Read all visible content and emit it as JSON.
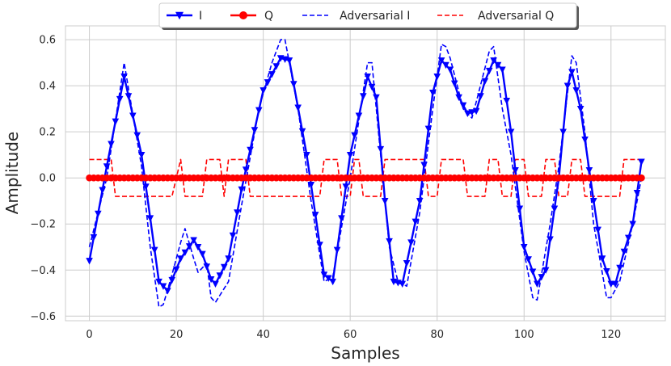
{
  "chart_data": {
    "type": "line",
    "title": "",
    "xlabel": "Samples",
    "ylabel": "Amplitude",
    "xlim": [
      -5.5,
      132.5
    ],
    "ylim": [
      -0.62,
      0.66
    ],
    "x_ticks": [
      0,
      20,
      40,
      60,
      80,
      100,
      120
    ],
    "y_ticks": [
      -0.6,
      -0.4,
      -0.2,
      0.0,
      0.2,
      0.4,
      0.6
    ],
    "x_tick_labels": [
      "0",
      "20",
      "40",
      "60",
      "80",
      "100",
      "120"
    ],
    "y_tick_labels": [
      "−0.6",
      "−0.4",
      "−0.2",
      "0.0",
      "0.2",
      "0.4",
      "0.6"
    ],
    "grid": true,
    "legend_placement": "top-center",
    "sample_count": 128,
    "series": [
      {
        "name": "I",
        "color": "#0000ff",
        "style": "solid",
        "marker": "triangle-down",
        "keypoints": [
          [
            0,
            -0.36
          ],
          [
            4,
            0.05
          ],
          [
            8,
            0.44
          ],
          [
            12,
            0.1
          ],
          [
            16,
            -0.45
          ],
          [
            18,
            -0.49
          ],
          [
            21,
            -0.35
          ],
          [
            24,
            -0.27
          ],
          [
            26,
            -0.33
          ],
          [
            28,
            -0.44
          ],
          [
            29,
            -0.46
          ],
          [
            32,
            -0.35
          ],
          [
            35,
            -0.05
          ],
          [
            40,
            0.38
          ],
          [
            44,
            0.52
          ],
          [
            46,
            0.51
          ],
          [
            50,
            0.1
          ],
          [
            54,
            -0.42
          ],
          [
            56,
            -0.45
          ],
          [
            60,
            0.1
          ],
          [
            64,
            0.44
          ],
          [
            66,
            0.35
          ],
          [
            68,
            -0.1
          ],
          [
            70,
            -0.45
          ],
          [
            72,
            -0.46
          ],
          [
            76,
            -0.1
          ],
          [
            79,
            0.37
          ],
          [
            81,
            0.51
          ],
          [
            83,
            0.47
          ],
          [
            85,
            0.35
          ],
          [
            87,
            0.28
          ],
          [
            89,
            0.29
          ],
          [
            91,
            0.42
          ],
          [
            93,
            0.51
          ],
          [
            95,
            0.47
          ],
          [
            97,
            0.2
          ],
          [
            100,
            -0.3
          ],
          [
            103,
            -0.46
          ],
          [
            105,
            -0.4
          ],
          [
            108,
            0.0
          ],
          [
            110,
            0.4
          ],
          [
            111,
            0.46
          ],
          [
            113,
            0.3
          ],
          [
            116,
            -0.1
          ],
          [
            118,
            -0.35
          ],
          [
            120,
            -0.46
          ],
          [
            121,
            -0.46
          ],
          [
            123,
            -0.32
          ],
          [
            125,
            -0.2
          ],
          [
            127,
            0.07
          ]
        ]
      },
      {
        "name": "Q",
        "color": "#ff0000",
        "style": "solid",
        "marker": "circle",
        "values": [
          0.0
        ]
      },
      {
        "name": "Adversarial I",
        "color": "#0000ff",
        "style": "dashed",
        "keypoints": [
          [
            0,
            -0.3
          ],
          [
            4,
            0.0
          ],
          [
            8,
            0.5
          ],
          [
            12,
            0.05
          ],
          [
            14,
            -0.3
          ],
          [
            16,
            -0.56
          ],
          [
            17,
            -0.55
          ],
          [
            19,
            -0.42
          ],
          [
            21,
            -0.28
          ],
          [
            22,
            -0.22
          ],
          [
            24,
            -0.35
          ],
          [
            25,
            -0.41
          ],
          [
            27,
            -0.37
          ],
          [
            28,
            -0.52
          ],
          [
            29,
            -0.54
          ],
          [
            32,
            -0.45
          ],
          [
            35,
            -0.12
          ],
          [
            39,
            0.3
          ],
          [
            42,
            0.5
          ],
          [
            44,
            0.6
          ],
          [
            45,
            0.6
          ],
          [
            48,
            0.3
          ],
          [
            51,
            -0.1
          ],
          [
            54,
            -0.45
          ],
          [
            56,
            -0.43
          ],
          [
            60,
            0.0
          ],
          [
            64,
            0.5
          ],
          [
            65,
            0.5
          ],
          [
            67,
            0.1
          ],
          [
            69,
            -0.3
          ],
          [
            71,
            -0.45
          ],
          [
            73,
            -0.47
          ],
          [
            76,
            -0.15
          ],
          [
            79,
            0.3
          ],
          [
            81,
            0.58
          ],
          [
            82,
            0.57
          ],
          [
            83,
            0.52
          ],
          [
            86,
            0.3
          ],
          [
            88,
            0.26
          ],
          [
            89,
            0.33
          ],
          [
            92,
            0.55
          ],
          [
            93,
            0.57
          ],
          [
            95,
            0.3
          ],
          [
            97,
            0.1
          ],
          [
            100,
            -0.32
          ],
          [
            102,
            -0.52
          ],
          [
            103,
            -0.53
          ],
          [
            106,
            -0.2
          ],
          [
            108,
            0.05
          ],
          [
            111,
            0.53
          ],
          [
            112,
            0.5
          ],
          [
            114,
            0.2
          ],
          [
            116,
            -0.2
          ],
          [
            119,
            -0.52
          ],
          [
            120,
            -0.52
          ],
          [
            122,
            -0.45
          ],
          [
            125,
            -0.2
          ],
          [
            127,
            0.0
          ]
        ]
      },
      {
        "name": "Adversarial Q",
        "color": "#ff0000",
        "style": "dashed",
        "keypoints": [
          [
            0,
            0.08
          ],
          [
            5,
            0.08
          ],
          [
            6,
            -0.08
          ],
          [
            18,
            -0.08
          ],
          [
            19,
            -0.08
          ],
          [
            21,
            0.08
          ],
          [
            22,
            -0.08
          ],
          [
            26,
            -0.08
          ],
          [
            27,
            0.08
          ],
          [
            30,
            0.08
          ],
          [
            31,
            -0.08
          ],
          [
            32,
            0.08
          ],
          [
            36,
            0.08
          ],
          [
            37,
            -0.08
          ],
          [
            53,
            -0.08
          ],
          [
            54,
            0.08
          ],
          [
            57,
            0.08
          ],
          [
            58,
            -0.08
          ],
          [
            60,
            -0.08
          ],
          [
            61,
            0.08
          ],
          [
            62,
            0.08
          ],
          [
            63,
            -0.08
          ],
          [
            67,
            -0.08
          ],
          [
            68,
            0.08
          ],
          [
            77,
            0.08
          ],
          [
            78,
            -0.08
          ],
          [
            80,
            -0.08
          ],
          [
            81,
            0.08
          ],
          [
            86,
            0.08
          ],
          [
            87,
            -0.08
          ],
          [
            91,
            -0.08
          ],
          [
            92,
            0.08
          ],
          [
            94,
            0.08
          ],
          [
            95,
            -0.08
          ],
          [
            97,
            -0.08
          ],
          [
            98,
            0.08
          ],
          [
            100,
            0.08
          ],
          [
            101,
            -0.08
          ],
          [
            104,
            -0.08
          ],
          [
            105,
            0.08
          ],
          [
            107,
            0.08
          ],
          [
            108,
            -0.08
          ],
          [
            110,
            -0.08
          ],
          [
            111,
            0.08
          ],
          [
            113,
            0.08
          ],
          [
            114,
            -0.08
          ],
          [
            122,
            -0.08
          ],
          [
            123,
            0.08
          ],
          [
            127,
            0.08
          ]
        ]
      }
    ]
  }
}
